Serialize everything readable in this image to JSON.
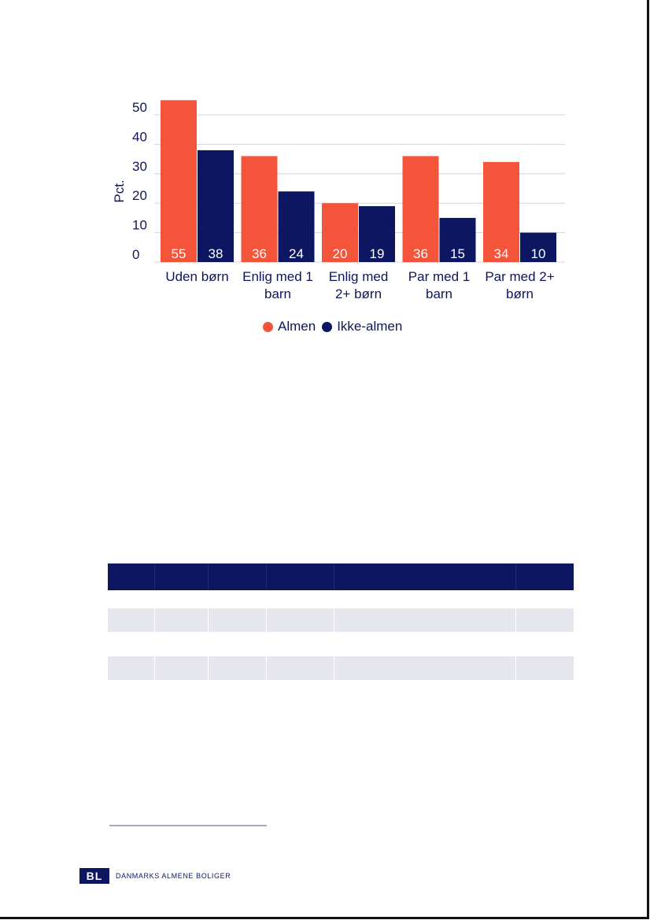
{
  "chart_data": {
    "type": "bar",
    "ylabel": "Pct.",
    "ylim": [
      0,
      55
    ],
    "yticks": [
      0,
      10,
      20,
      30,
      40,
      50
    ],
    "grid": true,
    "legend_position": "bottom",
    "categories": [
      [
        "Uden børn"
      ],
      [
        "Enlig med 1",
        "barn"
      ],
      [
        "Enlig med",
        "2+ børn"
      ],
      [
        "Par med 1",
        "barn"
      ],
      [
        "Par med 2+",
        "børn"
      ]
    ],
    "series": [
      {
        "name": "Almen",
        "color": "#f4553a",
        "values": [
          55,
          36,
          20,
          36,
          34
        ]
      },
      {
        "name": "Ikke-almen",
        "color": "#0d1660",
        "values": [
          38,
          24,
          19,
          15,
          10
        ]
      }
    ]
  },
  "logo": {
    "mark": "BL",
    "text": "DANMARKS ALMENE BOLIGER"
  }
}
